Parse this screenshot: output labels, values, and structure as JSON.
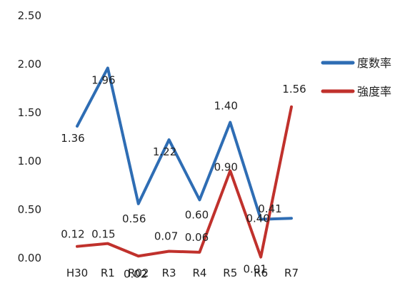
{
  "chart_data": {
    "type": "line",
    "categories": [
      "H30",
      "R1",
      "R02",
      "R3",
      "R4",
      "R5",
      "R6",
      "R7"
    ],
    "ylim": [
      0,
      2.5
    ],
    "yticks": [
      "0.00",
      "0.50",
      "1.00",
      "1.50",
      "2.00",
      "2.50"
    ],
    "grid": false,
    "legend_position": "right",
    "series": [
      {
        "name": "度数率",
        "color": "#2e6db4",
        "values": [
          1.36,
          1.96,
          0.56,
          1.22,
          0.6,
          1.4,
          0.4,
          0.41
        ],
        "labels": [
          "1.36",
          "1.96",
          "0.56",
          "1.22",
          "0.60",
          "1.40",
          "0.40",
          "0.41"
        ]
      },
      {
        "name": "強度率",
        "color": "#c0312c",
        "values": [
          0.12,
          0.15,
          0.02,
          0.07,
          0.06,
          0.9,
          0.01,
          1.56
        ],
        "labels": [
          "0.12",
          "0.15",
          "0.02",
          "0.07",
          "0.06",
          "0.90",
          "0.01",
          "1.56"
        ]
      }
    ]
  }
}
